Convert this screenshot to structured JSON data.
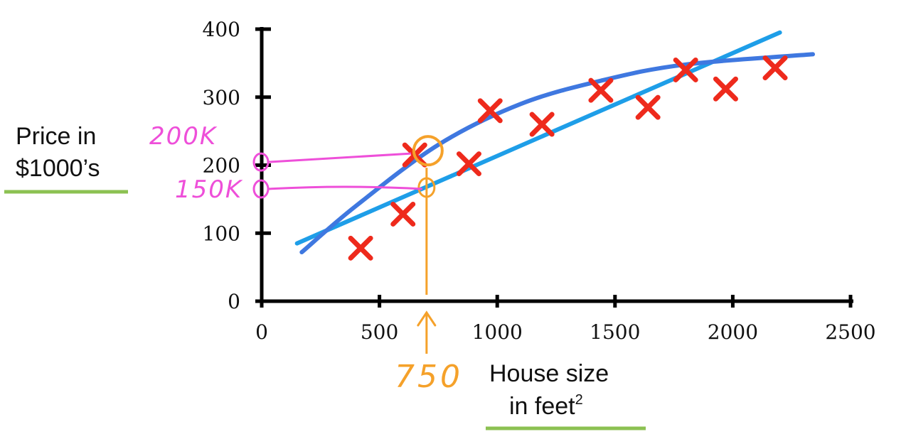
{
  "chart_data": {
    "type": "scatter",
    "title": "",
    "xlabel_lines": [
      "House size",
      "in feet"
    ],
    "xlabel_superscript": "2",
    "ylabel_lines": [
      "Price in",
      "$1000’s"
    ],
    "xlim": [
      0,
      2500
    ],
    "ylim": [
      0,
      400
    ],
    "x_ticks": [
      0,
      500,
      1000,
      1500,
      2000,
      2500
    ],
    "y_ticks": [
      0,
      100,
      200,
      300,
      400
    ],
    "grid": false,
    "series": [
      {
        "marker": "x",
        "color": "#ee2a1c",
        "points": [
          {
            "x": 420,
            "y": 78
          },
          {
            "x": 600,
            "y": 128
          },
          {
            "x": 650,
            "y": 215
          },
          {
            "x": 880,
            "y": 202
          },
          {
            "x": 970,
            "y": 280
          },
          {
            "x": 1190,
            "y": 260
          },
          {
            "x": 1440,
            "y": 310
          },
          {
            "x": 1640,
            "y": 285
          },
          {
            "x": 1800,
            "y": 340
          },
          {
            "x": 1970,
            "y": 312
          },
          {
            "x": 2180,
            "y": 343
          }
        ]
      },
      {
        "style": "linear-fit",
        "color": "#1e9ee8",
        "points": [
          {
            "x": 150,
            "y": 85
          },
          {
            "x": 2200,
            "y": 395
          }
        ]
      },
      {
        "style": "curve-fit",
        "color": "#3f78e0",
        "points": [
          {
            "x": 170,
            "y": 72
          },
          {
            "x": 400,
            "y": 140
          },
          {
            "x": 750,
            "y": 230
          },
          {
            "x": 1100,
            "y": 290
          },
          {
            "x": 1450,
            "y": 325
          },
          {
            "x": 1800,
            "y": 348
          },
          {
            "x": 2340,
            "y": 363
          }
        ]
      }
    ],
    "annotations": {
      "x_mark": {
        "label": "750",
        "x": 700,
        "color": "#f5a12a"
      },
      "y_marks": [
        {
          "label": "200K",
          "y": 215,
          "color": "#ee4fd9"
        },
        {
          "label": "150K",
          "y": 165,
          "color": "#ee4fd9"
        }
      ],
      "underline_color": "#8cc152"
    }
  }
}
